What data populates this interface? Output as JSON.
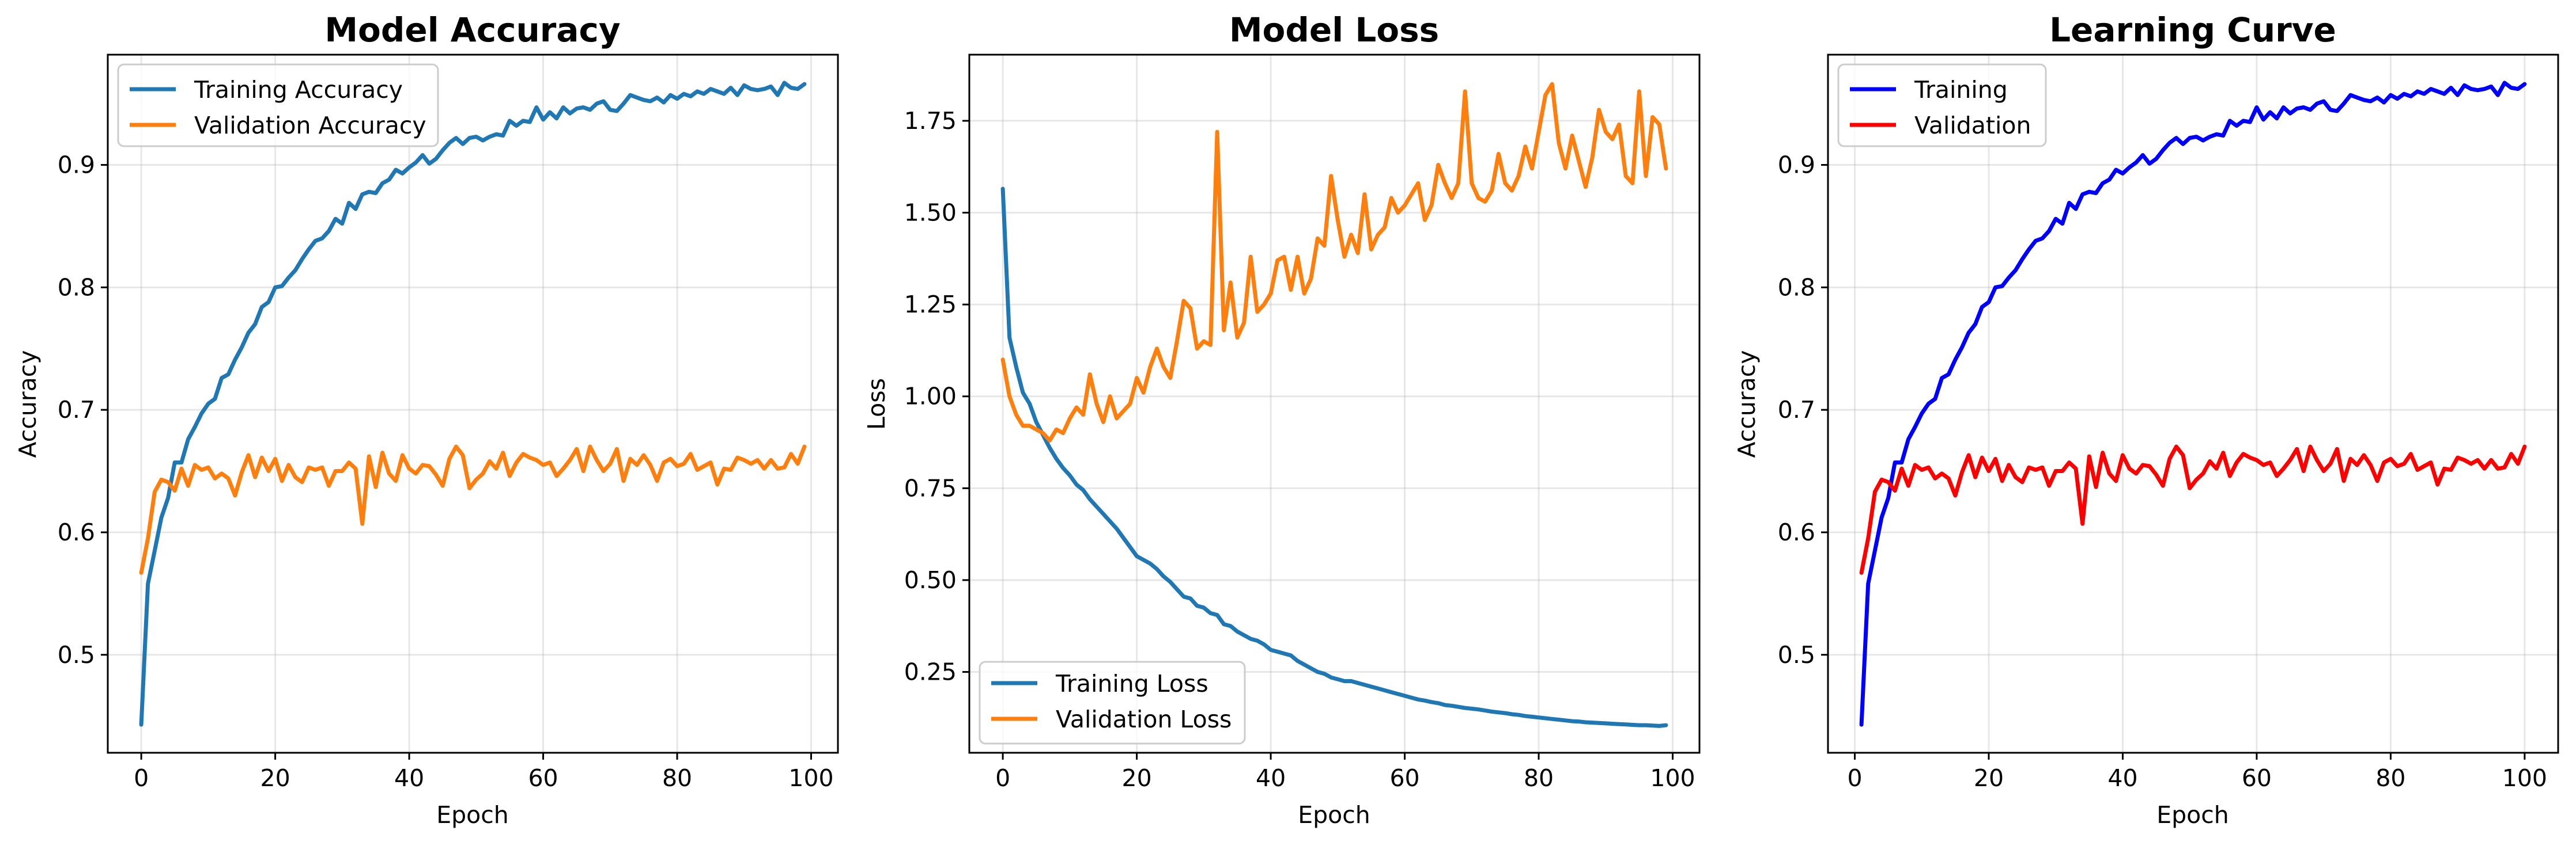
{
  "chart_data": [
    {
      "type": "line",
      "title": "Model Accuracy",
      "xlabel": "Epoch",
      "ylabel": "Accuracy",
      "xlim": [
        -5,
        104
      ],
      "ylim": [
        0.42,
        0.99
      ],
      "xticks": [
        0,
        20,
        40,
        60,
        80,
        100
      ],
      "yticks": [
        0.5,
        0.6,
        0.7,
        0.8,
        0.9
      ],
      "ytick_labels": [
        "0.5",
        "0.6",
        "0.7",
        "0.8",
        "0.9"
      ],
      "grid": true,
      "legend": "upper-left",
      "series": [
        {
          "name": "Training Accuracy",
          "color": "#1f77b4",
          "x_start": 0,
          "values": [
            0.443,
            0.558,
            0.585,
            0.612,
            0.628,
            0.657,
            0.657,
            0.676,
            0.686,
            0.697,
            0.705,
            0.709,
            0.726,
            0.729,
            0.741,
            0.751,
            0.763,
            0.77,
            0.784,
            0.788,
            0.8,
            0.801,
            0.808,
            0.814,
            0.823,
            0.831,
            0.838,
            0.84,
            0.846,
            0.856,
            0.852,
            0.869,
            0.864,
            0.876,
            0.878,
            0.877,
            0.885,
            0.888,
            0.896,
            0.893,
            0.898,
            0.902,
            0.908,
            0.901,
            0.905,
            0.912,
            0.918,
            0.922,
            0.917,
            0.922,
            0.923,
            0.92,
            0.923,
            0.925,
            0.924,
            0.936,
            0.932,
            0.936,
            0.935,
            0.947,
            0.937,
            0.943,
            0.938,
            0.947,
            0.942,
            0.946,
            0.947,
            0.945,
            0.95,
            0.952,
            0.945,
            0.944,
            0.95,
            0.957,
            0.955,
            0.953,
            0.952,
            0.955,
            0.951,
            0.957,
            0.954,
            0.958,
            0.956,
            0.96,
            0.958,
            0.962,
            0.96,
            0.958,
            0.963,
            0.957,
            0.965,
            0.962,
            0.961,
            0.962,
            0.964,
            0.957,
            0.967,
            0.963,
            0.962,
            0.966
          ]
        },
        {
          "name": "Validation Accuracy",
          "color": "#ff7f0e",
          "x_start": 0,
          "values": [
            0.567,
            0.595,
            0.633,
            0.643,
            0.641,
            0.634,
            0.652,
            0.638,
            0.655,
            0.651,
            0.653,
            0.644,
            0.648,
            0.644,
            0.63,
            0.649,
            0.663,
            0.645,
            0.661,
            0.65,
            0.66,
            0.642,
            0.655,
            0.645,
            0.641,
            0.653,
            0.651,
            0.653,
            0.638,
            0.65,
            0.65,
            0.657,
            0.652,
            0.607,
            0.662,
            0.637,
            0.665,
            0.648,
            0.642,
            0.663,
            0.652,
            0.648,
            0.655,
            0.654,
            0.647,
            0.638,
            0.66,
            0.67,
            0.663,
            0.636,
            0.643,
            0.648,
            0.658,
            0.652,
            0.665,
            0.646,
            0.657,
            0.664,
            0.661,
            0.659,
            0.655,
            0.657,
            0.646,
            0.652,
            0.659,
            0.668,
            0.65,
            0.67,
            0.659,
            0.65,
            0.656,
            0.668,
            0.642,
            0.66,
            0.655,
            0.663,
            0.655,
            0.642,
            0.657,
            0.66,
            0.654,
            0.656,
            0.664,
            0.651,
            0.654,
            0.657,
            0.639,
            0.652,
            0.651,
            0.661,
            0.659,
            0.656,
            0.659,
            0.652,
            0.659,
            0.652,
            0.653,
            0.664,
            0.656,
            0.67
          ]
        }
      ]
    },
    {
      "type": "line",
      "title": "Model Loss",
      "xlabel": "Epoch",
      "ylabel": "Loss",
      "xlim": [
        -5,
        104
      ],
      "ylim": [
        0.03,
        1.93
      ],
      "xticks": [
        0,
        20,
        40,
        60,
        80,
        100
      ],
      "yticks": [
        0.25,
        0.5,
        0.75,
        1.0,
        1.25,
        1.5,
        1.75
      ],
      "ytick_labels": [
        "0.25",
        "0.50",
        "0.75",
        "1.00",
        "1.25",
        "1.50",
        "1.75"
      ],
      "grid": true,
      "legend": "lower-left",
      "series": [
        {
          "name": "Training Loss",
          "color": "#1f77b4",
          "x_start": 0,
          "values": [
            1.565,
            1.16,
            1.08,
            1.01,
            0.98,
            0.93,
            0.895,
            0.86,
            0.83,
            0.805,
            0.785,
            0.76,
            0.745,
            0.72,
            0.7,
            0.68,
            0.66,
            0.64,
            0.615,
            0.59,
            0.565,
            0.555,
            0.545,
            0.53,
            0.51,
            0.495,
            0.475,
            0.455,
            0.45,
            0.43,
            0.425,
            0.41,
            0.405,
            0.38,
            0.375,
            0.36,
            0.35,
            0.34,
            0.335,
            0.325,
            0.31,
            0.305,
            0.3,
            0.295,
            0.28,
            0.27,
            0.26,
            0.25,
            0.245,
            0.235,
            0.23,
            0.225,
            0.225,
            0.22,
            0.215,
            0.21,
            0.205,
            0.2,
            0.195,
            0.19,
            0.185,
            0.18,
            0.175,
            0.172,
            0.168,
            0.165,
            0.16,
            0.158,
            0.155,
            0.152,
            0.15,
            0.148,
            0.145,
            0.142,
            0.14,
            0.138,
            0.135,
            0.133,
            0.13,
            0.128,
            0.126,
            0.124,
            0.122,
            0.12,
            0.118,
            0.116,
            0.115,
            0.113,
            0.112,
            0.111,
            0.11,
            0.109,
            0.108,
            0.107,
            0.106,
            0.105,
            0.105,
            0.104,
            0.103,
            0.105
          ]
        },
        {
          "name": "Validation Loss",
          "color": "#ff7f0e",
          "x_start": 0,
          "values": [
            1.1,
            1.0,
            0.95,
            0.92,
            0.92,
            0.91,
            0.9,
            0.88,
            0.91,
            0.9,
            0.94,
            0.97,
            0.95,
            1.06,
            0.98,
            0.93,
            1.0,
            0.94,
            0.96,
            0.98,
            1.05,
            1.01,
            1.08,
            1.13,
            1.08,
            1.05,
            1.15,
            1.26,
            1.24,
            1.13,
            1.15,
            1.14,
            1.72,
            1.18,
            1.31,
            1.16,
            1.2,
            1.38,
            1.23,
            1.25,
            1.28,
            1.37,
            1.38,
            1.29,
            1.38,
            1.28,
            1.32,
            1.43,
            1.41,
            1.6,
            1.48,
            1.38,
            1.44,
            1.39,
            1.55,
            1.4,
            1.44,
            1.46,
            1.54,
            1.5,
            1.52,
            1.55,
            1.58,
            1.48,
            1.52,
            1.63,
            1.58,
            1.54,
            1.58,
            1.83,
            1.58,
            1.54,
            1.53,
            1.56,
            1.66,
            1.58,
            1.56,
            1.6,
            1.68,
            1.62,
            1.72,
            1.82,
            1.85,
            1.69,
            1.62,
            1.71,
            1.64,
            1.57,
            1.65,
            1.78,
            1.72,
            1.7,
            1.74,
            1.6,
            1.58,
            1.83,
            1.6,
            1.76,
            1.74,
            1.62
          ]
        }
      ]
    },
    {
      "type": "line",
      "title": "Learning Curve",
      "xlabel": "Epoch",
      "ylabel": "Accuracy",
      "xlim": [
        -4,
        105
      ],
      "ylim": [
        0.42,
        0.99
      ],
      "xticks": [
        0,
        20,
        40,
        60,
        80,
        100
      ],
      "yticks": [
        0.5,
        0.6,
        0.7,
        0.8,
        0.9
      ],
      "ytick_labels": [
        "0.5",
        "0.6",
        "0.7",
        "0.8",
        "0.9"
      ],
      "grid": true,
      "legend": "upper-left",
      "series": [
        {
          "name": "Training",
          "color": "#0000ff",
          "x_start": 1,
          "values": [
            0.443,
            0.558,
            0.585,
            0.612,
            0.628,
            0.657,
            0.657,
            0.676,
            0.686,
            0.697,
            0.705,
            0.709,
            0.726,
            0.729,
            0.741,
            0.751,
            0.763,
            0.77,
            0.784,
            0.788,
            0.8,
            0.801,
            0.808,
            0.814,
            0.823,
            0.831,
            0.838,
            0.84,
            0.846,
            0.856,
            0.852,
            0.869,
            0.864,
            0.876,
            0.878,
            0.877,
            0.885,
            0.888,
            0.896,
            0.893,
            0.898,
            0.902,
            0.908,
            0.901,
            0.905,
            0.912,
            0.918,
            0.922,
            0.917,
            0.922,
            0.923,
            0.92,
            0.923,
            0.925,
            0.924,
            0.936,
            0.932,
            0.936,
            0.935,
            0.947,
            0.937,
            0.943,
            0.938,
            0.947,
            0.942,
            0.946,
            0.947,
            0.945,
            0.95,
            0.952,
            0.945,
            0.944,
            0.95,
            0.957,
            0.955,
            0.953,
            0.952,
            0.955,
            0.951,
            0.957,
            0.954,
            0.958,
            0.956,
            0.96,
            0.958,
            0.962,
            0.96,
            0.958,
            0.963,
            0.957,
            0.965,
            0.962,
            0.961,
            0.962,
            0.964,
            0.957,
            0.967,
            0.963,
            0.962,
            0.966
          ]
        },
        {
          "name": "Validation",
          "color": "#ff0000",
          "x_start": 1,
          "values": [
            0.567,
            0.595,
            0.633,
            0.643,
            0.641,
            0.634,
            0.652,
            0.638,
            0.655,
            0.651,
            0.653,
            0.644,
            0.648,
            0.644,
            0.63,
            0.649,
            0.663,
            0.645,
            0.661,
            0.65,
            0.66,
            0.642,
            0.655,
            0.645,
            0.641,
            0.653,
            0.651,
            0.653,
            0.638,
            0.65,
            0.65,
            0.657,
            0.652,
            0.607,
            0.662,
            0.637,
            0.665,
            0.648,
            0.642,
            0.663,
            0.652,
            0.648,
            0.655,
            0.654,
            0.647,
            0.638,
            0.66,
            0.67,
            0.663,
            0.636,
            0.643,
            0.648,
            0.658,
            0.652,
            0.665,
            0.646,
            0.657,
            0.664,
            0.661,
            0.659,
            0.655,
            0.657,
            0.646,
            0.652,
            0.659,
            0.668,
            0.65,
            0.67,
            0.659,
            0.65,
            0.656,
            0.668,
            0.642,
            0.66,
            0.655,
            0.663,
            0.655,
            0.642,
            0.657,
            0.66,
            0.654,
            0.656,
            0.664,
            0.651,
            0.654,
            0.657,
            0.639,
            0.652,
            0.651,
            0.661,
            0.659,
            0.656,
            0.659,
            0.652,
            0.659,
            0.652,
            0.653,
            0.664,
            0.656,
            0.67
          ]
        }
      ]
    }
  ]
}
